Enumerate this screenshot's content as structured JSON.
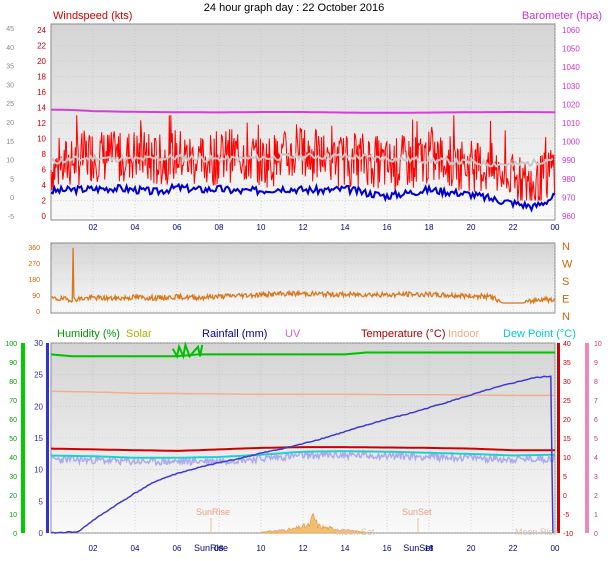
{
  "header": {
    "title": "24 hour graph day : 22 October 2016"
  },
  "colors": {
    "bg": "#ffffff",
    "plot_top": "#d4d4d4",
    "plot_bottom": "#fafafa",
    "grid": "#bfbfbf",
    "wind": "#ff0000",
    "wind_avg": "#0000cc",
    "wind_gust_avg": "#c8c8c8",
    "baro": "#d83cd8",
    "dir": "#d8781c",
    "humidity": "#00c000",
    "solar": "#c0c000",
    "rain": "#3c3ccc",
    "uv": "#d07ad0",
    "temp": "#cc0000",
    "indoor": "#f0b090",
    "dew": "#20d0d0",
    "temp_band": "#aaaaee"
  },
  "chart_data": [
    {
      "type": "line",
      "name": "wind-baro",
      "title": "Windspeed (kts)",
      "right_title": "Barometer (hpa)",
      "x_ticks": [
        "02",
        "04",
        "06",
        "08",
        "10",
        "12",
        "14",
        "16",
        "18",
        "20",
        "22",
        "00"
      ],
      "x_tick_hours": [
        2,
        4,
        6,
        8,
        10,
        12,
        14,
        16,
        18,
        20,
        22,
        24
      ],
      "x_range": [
        0,
        24
      ],
      "y_left_outer_ticks": [
        "45",
        "40",
        "35",
        "30",
        "25",
        "20",
        "15",
        "10",
        "5",
        "0",
        "-5"
      ],
      "y_left_ticks": [
        "24",
        "22",
        "20",
        "18",
        "16",
        "14",
        "12",
        "10",
        "8",
        "6",
        "4",
        "2",
        "0"
      ],
      "y_left_range": [
        0,
        24
      ],
      "y_right_ticks": [
        "1060",
        "1050",
        "1040",
        "1030",
        "1020",
        "1010",
        "1000",
        "990",
        "980",
        "970",
        "960"
      ],
      "y_right_range": [
        960,
        1060
      ],
      "series": [
        {
          "key": "wind_gust",
          "hours": [
            0,
            1,
            2,
            3,
            4,
            5,
            6,
            7,
            8,
            9,
            10,
            11,
            12,
            13,
            14,
            15,
            16,
            17,
            18,
            19,
            20,
            21,
            22,
            23,
            23.5,
            24
          ],
          "values": [
            6,
            7,
            8,
            7.5,
            8,
            7,
            8,
            7,
            7.5,
            8,
            7,
            7.5,
            8,
            7.5,
            7,
            7.5,
            6.5,
            7,
            7.5,
            7,
            6.5,
            6,
            4.5,
            3.5,
            5,
            6.5
          ]
        },
        {
          "key": "wind_avg",
          "hours": [
            0,
            1,
            2,
            3,
            4,
            5,
            6,
            7,
            8,
            9,
            10,
            11,
            12,
            13,
            14,
            15,
            16,
            17,
            18,
            19,
            20,
            21,
            22,
            23,
            23.5,
            24
          ],
          "values": [
            3.2,
            3.4,
            3.5,
            3.6,
            3.4,
            3.1,
            3.7,
            3.4,
            3.5,
            3.2,
            3.3,
            3.6,
            3.4,
            3.3,
            3.5,
            3.0,
            2.6,
            3.0,
            3.4,
            3.1,
            2.8,
            2.2,
            1.7,
            1.2,
            1.8,
            2.6
          ]
        },
        {
          "key": "wind_gust_avg",
          "hours": [
            0,
            2,
            4,
            6,
            8,
            10,
            12,
            14,
            16,
            18,
            20,
            22,
            23,
            24
          ],
          "values": [
            7,
            7.5,
            7.3,
            7.6,
            7.3,
            7.5,
            7.7,
            7.7,
            7.4,
            7.2,
            6.9,
            6.6,
            6.9,
            7.5
          ]
        },
        {
          "key": "baro",
          "hours": [
            0,
            1,
            2,
            4,
            6,
            8,
            10,
            12,
            14,
            16,
            18,
            20,
            22,
            24
          ],
          "values": [
            1017.2,
            1017.0,
            1016.4,
            1016.0,
            1015.8,
            1015.7,
            1015.9,
            1015.9,
            1015.6,
            1015.5,
            1015.6,
            1015.8,
            1015.9,
            1015.8
          ]
        }
      ]
    },
    {
      "type": "line",
      "name": "wind-direction",
      "x_ticks": [
        "02",
        "04",
        "06",
        "08",
        "10",
        "12",
        "14",
        "16",
        "18",
        "20",
        "22",
        "00"
      ],
      "x_range": [
        0,
        24
      ],
      "y_ticks": [
        "360",
        "270",
        "180",
        "90",
        "0"
      ],
      "y_range": [
        0,
        360
      ],
      "compass_labels": [
        "N",
        "W",
        "S",
        "E",
        "N"
      ],
      "series": [
        {
          "key": "direction",
          "hours": [
            0,
            1,
            2,
            3,
            4,
            5,
            6,
            7,
            8,
            9,
            10,
            11,
            12,
            13,
            14,
            15,
            16,
            17,
            18,
            19,
            20,
            21,
            21.5,
            22.5,
            23,
            23.5,
            24
          ],
          "values": [
            70,
            65,
            75,
            70,
            78,
            72,
            80,
            76,
            82,
            88,
            92,
            96,
            98,
            95,
            92,
            94,
            90,
            95,
            92,
            88,
            85,
            80,
            45,
            45,
            60,
            70,
            55
          ],
          "spike_hour": 1.05,
          "spike_value": 355
        }
      ]
    },
    {
      "type": "line",
      "name": "temp-rain-humidity",
      "legend": [
        "Humidity (%)",
        "Solar",
        "Rainfall (mm)",
        "UV",
        "Temperature (°C)",
        "Indoor",
        "Dew Point (°C)"
      ],
      "x_ticks": [
        "02",
        "04",
        "06",
        "08",
        "10",
        "12",
        "14",
        "16",
        "18",
        "20",
        "22",
        "00"
      ],
      "x_range": [
        0,
        24
      ],
      "y_humidity_ticks": [
        "100",
        "90",
        "80",
        "70",
        "60",
        "50",
        "40",
        "30",
        "20",
        "10",
        "0"
      ],
      "y_humidity_range": [
        0,
        100
      ],
      "y_rain_ticks": [
        "30",
        "25",
        "20",
        "15",
        "10",
        "5",
        "0"
      ],
      "y_rain_range": [
        0,
        30
      ],
      "y_temp_ticks": [
        "40",
        "35",
        "30",
        "25",
        "20",
        "15",
        "10",
        "5",
        "0",
        "-5",
        "-10"
      ],
      "y_temp_range": [
        -10,
        40
      ],
      "y_uv_ticks": [
        "10",
        "9",
        "8",
        "7",
        "6",
        "5",
        "4",
        "3",
        "2",
        "1",
        "0"
      ],
      "y_uv_range": [
        0,
        10
      ],
      "annotations": [
        "SunRise",
        "SunSet",
        "Moon Rise",
        "Moon Set",
        "SunRise",
        "SunSet"
      ],
      "series": [
        {
          "key": "rainfall",
          "hours": [
            0,
            1.3,
            2,
            3,
            4,
            5,
            6,
            7,
            8,
            9,
            10,
            11,
            12,
            13,
            14,
            15,
            16,
            17,
            18,
            19,
            20,
            21,
            22,
            23,
            23.9
          ],
          "values": [
            0,
            0.2,
            2,
            4.2,
            6.3,
            8.2,
            9.4,
            10.3,
            11.1,
            11.8,
            12.6,
            13.3,
            14.1,
            15,
            16,
            17,
            18,
            18.8,
            19.8,
            20.8,
            21.8,
            22.8,
            23.7,
            24.5,
            24.8
          ]
        },
        {
          "key": "temperature",
          "hours": [
            0,
            2,
            4,
            6,
            8,
            10,
            12,
            14,
            16,
            18,
            20,
            22,
            24
          ],
          "values": [
            12.2,
            12.0,
            11.8,
            11.6,
            12.0,
            12.4,
            12.6,
            12.6,
            12.5,
            12.4,
            12.2,
            11.8,
            11.8
          ]
        },
        {
          "key": "dew_point",
          "hours": [
            0,
            2,
            4,
            6,
            8,
            10,
            12,
            14,
            16,
            18,
            20,
            22,
            24
          ],
          "values": [
            10.4,
            10.2,
            9.8,
            9.8,
            10.0,
            10.6,
            11.4,
            11.5,
            11.4,
            11.1,
            10.8,
            10.4,
            10.6
          ]
        },
        {
          "key": "indoor",
          "hours": [
            0,
            2,
            4,
            6,
            8,
            10,
            12,
            14,
            16,
            18,
            20,
            22,
            24
          ],
          "values": [
            27.3,
            27.1,
            26.8,
            26.7,
            26.6,
            26.5,
            26.5,
            26.5,
            26.4,
            26.4,
            26.3,
            26.2,
            26.2
          ]
        },
        {
          "key": "humidity",
          "hours": [
            0,
            1,
            2,
            3,
            4,
            5,
            6,
            7,
            8,
            9,
            10,
            11,
            12,
            13,
            14,
            15,
            16,
            17,
            18,
            19,
            20,
            21,
            22,
            23,
            24
          ],
          "values": [
            94,
            93,
            93,
            93,
            93,
            93,
            93,
            94,
            94,
            94,
            94,
            94,
            94,
            94,
            94,
            95,
            95,
            95,
            95,
            95,
            95,
            95,
            95,
            95,
            95
          ]
        },
        {
          "key": "solar",
          "hours": [
            5.8,
            6.0,
            6.1,
            6.3,
            6.4,
            6.6,
            7.0,
            7.1,
            7.2
          ],
          "values": [
            97,
            93,
            98,
            93,
            99,
            93,
            98,
            93,
            99
          ]
        },
        {
          "key": "uv",
          "hours": [
            10,
            11,
            11.5,
            12,
            12.3,
            12.5,
            12.7,
            13,
            14,
            15
          ],
          "values": [
            0.05,
            0.15,
            0.2,
            0.35,
            0.4,
            0.9,
            0.4,
            0.3,
            0.15,
            0.05
          ]
        }
      ]
    }
  ]
}
